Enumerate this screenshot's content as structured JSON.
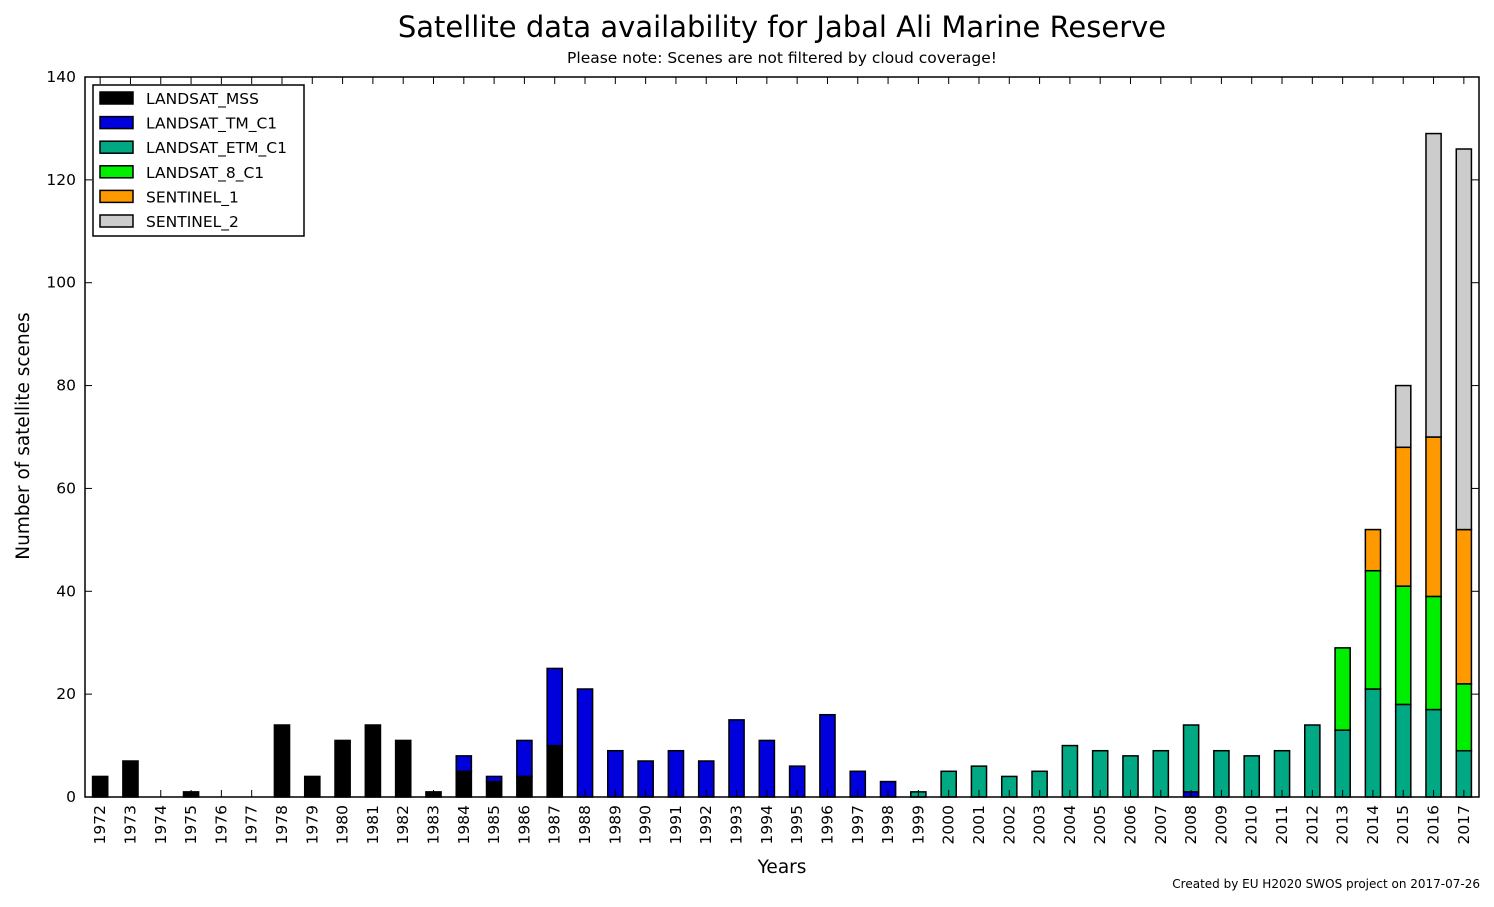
{
  "title": "Satellite data availability for Jabal Ali Marine Reserve",
  "subtitle": "Please note: Scenes are not filtered by cloud coverage!",
  "footer": "Created by EU H2020 SWOS project on 2017-07-26",
  "chart_data": {
    "type": "bar",
    "stacked": true,
    "xlabel": "Years",
    "ylabel": "Number of satellite scenes",
    "ylim": [
      0,
      140
    ],
    "yticks": [
      0,
      20,
      40,
      60,
      80,
      100,
      120,
      140
    ],
    "legend_position": "top-left",
    "grid": false,
    "categories": [
      "1972",
      "1973",
      "1974",
      "1975",
      "1976",
      "1977",
      "1978",
      "1979",
      "1980",
      "1981",
      "1982",
      "1983",
      "1984",
      "1985",
      "1986",
      "1987",
      "1988",
      "1989",
      "1990",
      "1991",
      "1992",
      "1993",
      "1994",
      "1995",
      "1996",
      "1997",
      "1998",
      "1999",
      "2000",
      "2001",
      "2002",
      "2003",
      "2004",
      "2005",
      "2006",
      "2007",
      "2008",
      "2009",
      "2010",
      "2011",
      "2012",
      "2013",
      "2014",
      "2015",
      "2016",
      "2017"
    ],
    "series": [
      {
        "name": "LANDSAT_MSS",
        "color": "#000000",
        "values": [
          4,
          7,
          0,
          1,
          0,
          0,
          14,
          4,
          11,
          14,
          11,
          1,
          5,
          3,
          4,
          10,
          0,
          0,
          0,
          0,
          0,
          0,
          0,
          0,
          0,
          0,
          0,
          0,
          0,
          0,
          0,
          0,
          0,
          0,
          0,
          0,
          0,
          0,
          0,
          0,
          0,
          0,
          0,
          0,
          0,
          0
        ]
      },
      {
        "name": "LANDSAT_TM_C1",
        "color": "#0000dd",
        "values": [
          0,
          0,
          0,
          0,
          0,
          0,
          0,
          0,
          0,
          0,
          0,
          0,
          3,
          1,
          7,
          15,
          21,
          9,
          7,
          9,
          7,
          15,
          11,
          6,
          16,
          5,
          3,
          0,
          0,
          0,
          0,
          0,
          0,
          0,
          0,
          0,
          1,
          0,
          0,
          0,
          0,
          0,
          0,
          0,
          0,
          0
        ]
      },
      {
        "name": "LANDSAT_ETM_C1",
        "color": "#00a884",
        "values": [
          0,
          0,
          0,
          0,
          0,
          0,
          0,
          0,
          0,
          0,
          0,
          0,
          0,
          0,
          0,
          0,
          0,
          0,
          0,
          0,
          0,
          0,
          0,
          0,
          0,
          0,
          0,
          1,
          5,
          6,
          4,
          5,
          10,
          9,
          8,
          9,
          13,
          9,
          8,
          9,
          14,
          13,
          21,
          18,
          17,
          9
        ]
      },
      {
        "name": "LANDSAT_8_C1",
        "color": "#00ee00",
        "values": [
          0,
          0,
          0,
          0,
          0,
          0,
          0,
          0,
          0,
          0,
          0,
          0,
          0,
          0,
          0,
          0,
          0,
          0,
          0,
          0,
          0,
          0,
          0,
          0,
          0,
          0,
          0,
          0,
          0,
          0,
          0,
          0,
          0,
          0,
          0,
          0,
          0,
          0,
          0,
          0,
          0,
          16,
          23,
          23,
          22,
          13
        ]
      },
      {
        "name": "SENTINEL_1",
        "color": "#ff9900",
        "values": [
          0,
          0,
          0,
          0,
          0,
          0,
          0,
          0,
          0,
          0,
          0,
          0,
          0,
          0,
          0,
          0,
          0,
          0,
          0,
          0,
          0,
          0,
          0,
          0,
          0,
          0,
          0,
          0,
          0,
          0,
          0,
          0,
          0,
          0,
          0,
          0,
          0,
          0,
          0,
          0,
          0,
          0,
          8,
          27,
          31,
          30
        ]
      },
      {
        "name": "SENTINEL_2",
        "color": "#cccccc",
        "values": [
          0,
          0,
          0,
          0,
          0,
          0,
          0,
          0,
          0,
          0,
          0,
          0,
          0,
          0,
          0,
          0,
          0,
          0,
          0,
          0,
          0,
          0,
          0,
          0,
          0,
          0,
          0,
          0,
          0,
          0,
          0,
          0,
          0,
          0,
          0,
          0,
          0,
          0,
          0,
          0,
          0,
          0,
          0,
          12,
          59,
          74
        ]
      }
    ]
  }
}
